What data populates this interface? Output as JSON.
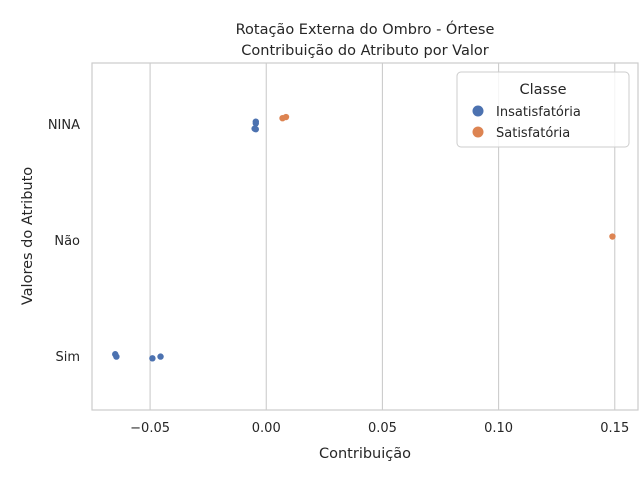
{
  "chart_data": {
    "type": "scatter",
    "title_lines": [
      "Rotação Externa do Ombro - Órtese",
      "Contribuição do Atributo por Valor"
    ],
    "xlabel": "Contribuição",
    "ylabel": "Valores do Atributo",
    "xlim": [
      -0.075,
      0.16
    ],
    "xticks": [
      -0.05,
      0.0,
      0.05,
      0.1,
      0.15
    ],
    "xtick_labels": [
      "−0.05",
      "0.00",
      "0.05",
      "0.10",
      "0.15"
    ],
    "categories": [
      "NINA",
      "Não",
      "Sim"
    ],
    "grid": "vertical",
    "legend_title": "Classe",
    "legend_position": "top-right",
    "series": [
      {
        "name": "Insatisfatória",
        "color": "#4c72b0",
        "points": [
          {
            "x": -0.0045,
            "category": "NINA",
            "jitter": -0.04
          },
          {
            "x": -0.0045,
            "category": "NINA",
            "jitter": -0.01
          },
          {
            "x": -0.005,
            "category": "NINA",
            "jitter": 0.08
          },
          {
            "x": -0.0045,
            "category": "NINA",
            "jitter": 0.09
          },
          {
            "x": -0.065,
            "category": "Sim",
            "jitter": -0.03
          },
          {
            "x": -0.0645,
            "category": "Sim",
            "jitter": 0.01
          },
          {
            "x": -0.0455,
            "category": "Sim",
            "jitter": 0.01
          },
          {
            "x": -0.049,
            "category": "Sim",
            "jitter": 0.04
          }
        ]
      },
      {
        "name": "Satisfatória",
        "color": "#dd8452",
        "points": [
          {
            "x": 0.0085,
            "category": "NINA",
            "jitter": -0.12
          },
          {
            "x": 0.007,
            "category": "NINA",
            "jitter": -0.1
          },
          {
            "x": 0.149,
            "category": "Não",
            "jitter": -0.06
          }
        ]
      }
    ]
  }
}
